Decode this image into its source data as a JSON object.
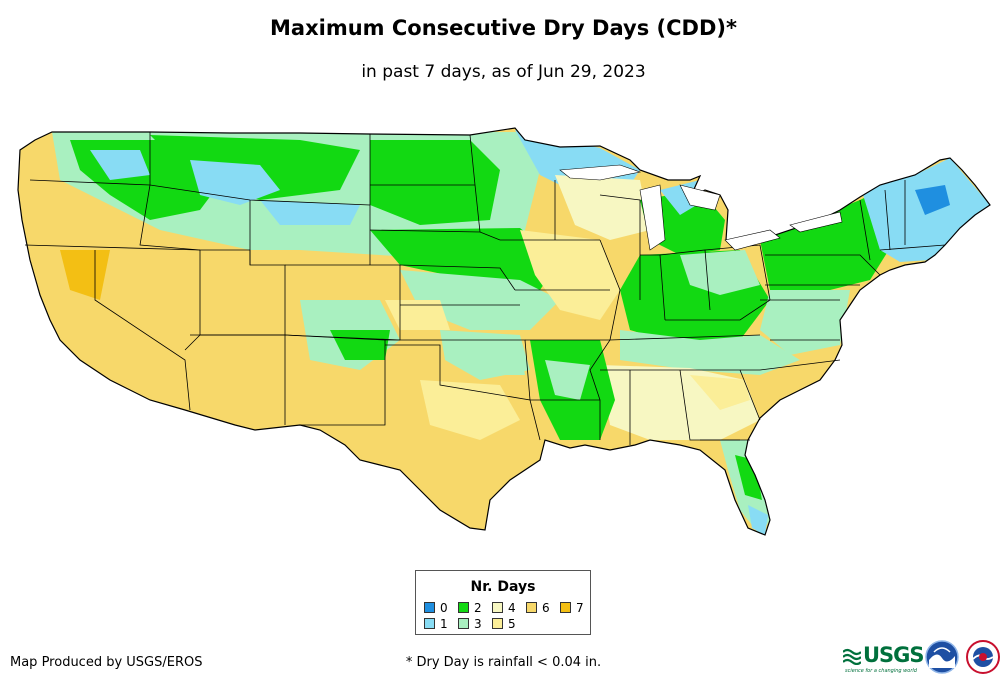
{
  "title": "Maximum Consecutive Dry Days (CDD)*",
  "subtitle": "in past 7 days, as of Jun 29, 2023",
  "legend": {
    "title": "Nr. Days",
    "items": [
      {
        "label": "0",
        "color": "#1f8fe0"
      },
      {
        "label": "1",
        "color": "#88dcf4"
      },
      {
        "label": "2",
        "color": "#12d912"
      },
      {
        "label": "3",
        "color": "#a9f0c0"
      },
      {
        "label": "4",
        "color": "#f7f7c2"
      },
      {
        "label": "5",
        "color": "#fbee98"
      },
      {
        "label": "6",
        "color": "#f7d86a"
      },
      {
        "label": "7",
        "color": "#f3bf14"
      }
    ]
  },
  "footer": {
    "credit": "Map Produced by USGS/EROS",
    "note": "* Dry Day is rainfall < 0.04 in."
  },
  "logos": {
    "usgs_text": "USGS",
    "usgs_tagline": "science for a changing world"
  },
  "map": {
    "background_color": "#f7d86a",
    "state_border_color": "#000000"
  }
}
